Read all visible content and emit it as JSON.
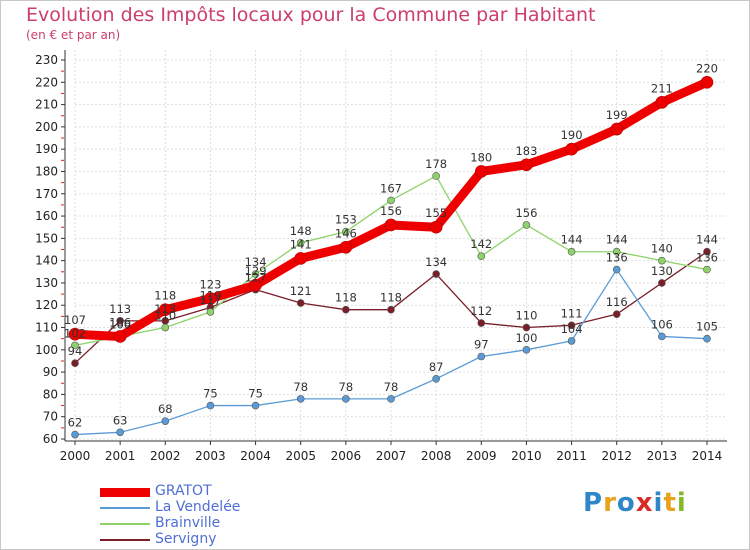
{
  "title": "Evolution des Impôts locaux pour la Commune par Habitant",
  "subtitle": "(en € et par an)",
  "brand": {
    "letters": [
      "P",
      "r",
      "o",
      "x",
      "i",
      "t",
      "i"
    ],
    "letter_colors": [
      "#2f87c7",
      "#e8a21c",
      "#2f87c7",
      "#d82b22",
      "#2f87c7",
      "#e8a21c",
      "#83b82d"
    ]
  },
  "colors": {
    "title": "#cc3f6a",
    "legend_text": "#4f6fd6",
    "axis": "#333333",
    "tick_red": "#dd2222",
    "grid": "#dddddd"
  },
  "chart_data": {
    "type": "line",
    "x": [
      "2000",
      "2001",
      "2002",
      "2003",
      "2004",
      "2005",
      "2006",
      "2007",
      "2008",
      "2009",
      "2010",
      "2011",
      "2012",
      "2013",
      "2014"
    ],
    "ylim": [
      60,
      230
    ],
    "yticks": [
      60,
      70,
      80,
      90,
      100,
      110,
      120,
      130,
      140,
      150,
      160,
      170,
      180,
      190,
      200,
      210,
      220,
      230
    ],
    "grid": true,
    "legend": "bottom-left",
    "series": [
      {
        "name": "Servigny",
        "color": "#7a1f2a",
        "values": [
          94,
          113,
          113,
          119,
          127,
          121,
          118,
          118,
          134,
          112,
          110,
          111,
          116,
          130,
          144
        ]
      },
      {
        "name": "Brainville",
        "color": "#8ed36a",
        "values": [
          102,
          106,
          110,
          117,
          134,
          148,
          153,
          167,
          178,
          142,
          156,
          144,
          144,
          140,
          136
        ]
      },
      {
        "name": "La Vendelée",
        "color": "#5b9bd5",
        "values": [
          62,
          63,
          68,
          75,
          75,
          78,
          78,
          78,
          87,
          97,
          100,
          104,
          136,
          106,
          105
        ]
      },
      {
        "name": "GRATOT",
        "color": "#ee0000",
        "values": [
          107,
          106,
          118,
          123,
          129,
          141,
          146,
          156,
          155,
          180,
          183,
          190,
          199,
          211,
          220
        ]
      }
    ]
  },
  "legend": [
    {
      "name": "GRATOT",
      "color": "#ee0000"
    },
    {
      "name": "La Vendelée",
      "color": "#5b9bd5"
    },
    {
      "name": "Brainville",
      "color": "#8ed36a"
    },
    {
      "name": "Servigny",
      "color": "#7a1f2a"
    }
  ]
}
